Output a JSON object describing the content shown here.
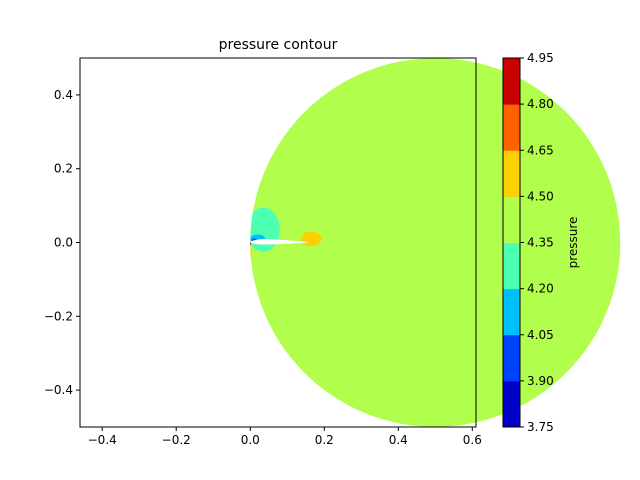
{
  "chart_data": {
    "type": "heatmap",
    "title": "pressure contour",
    "xlabel": "",
    "ylabel": "",
    "xlim": [
      -0.46,
      0.61
    ],
    "ylim": [
      -0.5,
      0.5
    ],
    "x_ticks": [
      -0.4,
      -0.2,
      0.0,
      0.2,
      0.4,
      0.6
    ],
    "x_tick_labels": [
      "−0.4",
      "−0.2",
      "0.0",
      "0.2",
      "0.4",
      "0.6"
    ],
    "y_ticks": [
      -0.4,
      -0.2,
      0.0,
      0.2,
      0.4
    ],
    "y_tick_labels": [
      "−0.4",
      "−0.2",
      "0.0",
      "0.2",
      "0.4"
    ],
    "grid": false,
    "domain_circle": {
      "cx": 0.5,
      "cy": 0.0,
      "r": 0.5
    },
    "background_level_color": "#b1ff4c",
    "colorbar": {
      "label": "pressure",
      "levels": [
        3.75,
        3.9,
        4.05,
        4.2,
        4.35,
        4.5,
        4.65,
        4.8,
        4.95
      ],
      "tick_labels": [
        "3.75",
        "3.90",
        "4.05",
        "4.20",
        "4.35",
        "4.50",
        "4.65",
        "4.80",
        "4.95"
      ],
      "colors": [
        "#0000c8",
        "#0040ff",
        "#00c0ff",
        "#4dffb0",
        "#b1ff4c",
        "#ffd000",
        "#ff6000",
        "#c80000"
      ]
    },
    "regions": [
      {
        "name": "low-pressure-bubble-upper",
        "shape": "ellipse",
        "cx": 0.035,
        "cy": 0.035,
        "rx": 0.045,
        "ry": 0.06,
        "color": "#4dffb0"
      },
      {
        "name": "low-pressure-core",
        "shape": "ellipse",
        "cx": 0.02,
        "cy": 0.01,
        "rx": 0.02,
        "ry": 0.012,
        "color": "#00c0ff"
      },
      {
        "name": "low-pressure-inner",
        "shape": "ellipse",
        "cx": 0.012,
        "cy": 0.005,
        "rx": 0.008,
        "ry": 0.006,
        "color": "#0040ff"
      },
      {
        "name": "high-pressure-leading-edge",
        "shape": "ellipse",
        "cx": -0.035,
        "cy": -0.03,
        "rx": 0.04,
        "ry": 0.045,
        "color": "#ffd000"
      },
      {
        "name": "high-pressure-stagnation",
        "shape": "ellipse",
        "cx": -0.003,
        "cy": -0.003,
        "rx": 0.006,
        "ry": 0.006,
        "color": "#c80000"
      },
      {
        "name": "high-pressure-trailing-edge",
        "shape": "ellipse",
        "cx": 0.165,
        "cy": 0.01,
        "rx": 0.028,
        "ry": 0.02,
        "color": "#ffd000"
      }
    ],
    "airfoil": {
      "leading_edge_x": 0.0,
      "trailing_edge_x": 0.16,
      "thickness": 0.012,
      "color": "#ffffff"
    }
  }
}
